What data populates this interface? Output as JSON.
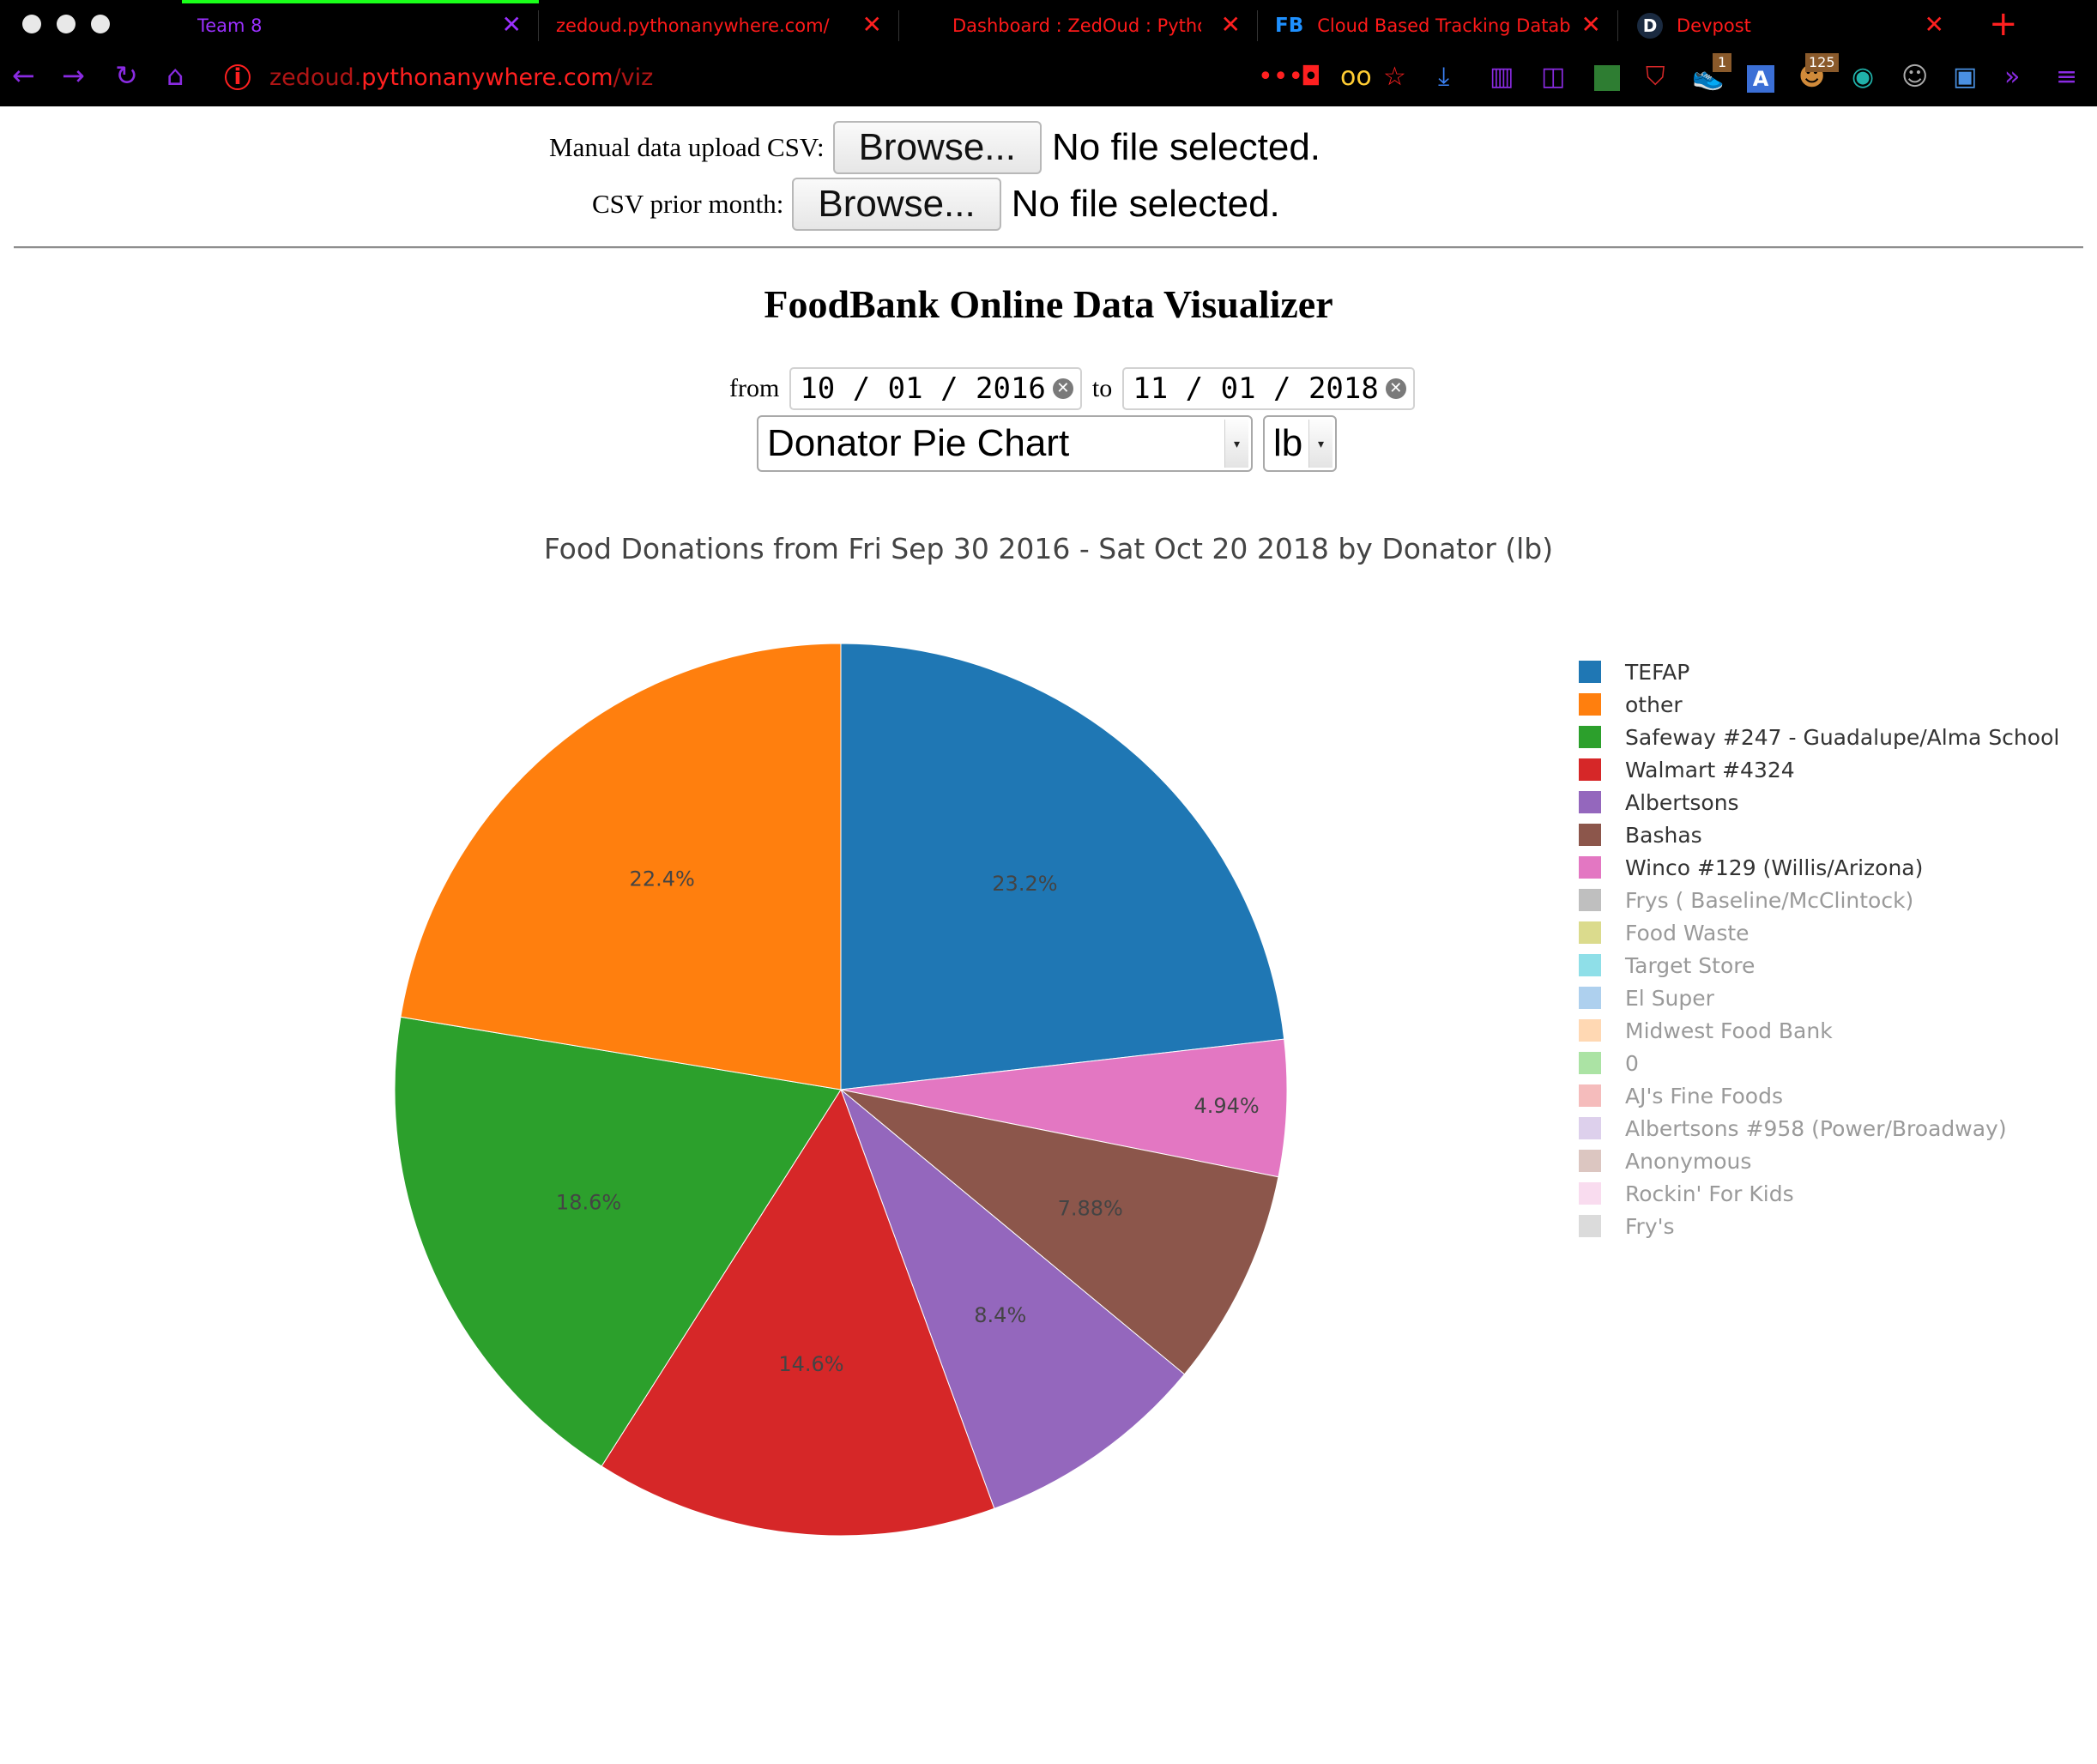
{
  "browser": {
    "tabs": [
      {
        "title": "Team 8",
        "active": true
      },
      {
        "title": "zedoud.pythonanywhere.com/",
        "active": false
      },
      {
        "title": "Dashboard : ZedOud : Pytho",
        "active": false
      },
      {
        "title": "Cloud Based Tracking Datab",
        "active": false,
        "favicon": "FB"
      },
      {
        "title": "Devpost",
        "active": false,
        "favicon": "D"
      }
    ],
    "url": {
      "prefix": "zedoud.",
      "domain": "pythonanywhere.com",
      "path": "/viz"
    },
    "toolbar_badges": {
      "badge1": "1",
      "badge2": "125"
    }
  },
  "upload": {
    "manual_label": "Manual data upload CSV:",
    "prior_label": "CSV prior month:",
    "browse_label": "Browse...",
    "no_file": "No file selected."
  },
  "page_title": "FoodBank Online Data Visualizer",
  "filters": {
    "from_label": "from",
    "to_label": "to",
    "from_date": "10 / 01 / 2016",
    "to_date": "11 / 01 / 2018",
    "chart_type": "Donator Pie Chart",
    "unit": "lb"
  },
  "chart_data": {
    "type": "pie",
    "title": "Food Donations from Fri Sep 30 2016 - Sat Oct 20 2018 by Donator (lb)",
    "slices": [
      {
        "label": "TEFAP",
        "percent": 23.2,
        "text": "23.2%",
        "color": "#1f77b4"
      },
      {
        "label": "Winco #129 (Willis/Arizona)",
        "percent": 4.94,
        "text": "4.94%",
        "color": "#e377c2"
      },
      {
        "label": "Bashas",
        "percent": 7.88,
        "text": "7.88%",
        "color": "#8c564b"
      },
      {
        "label": "Albertsons",
        "percent": 8.4,
        "text": "8.4%",
        "color": "#9467bd"
      },
      {
        "label": "Walmart #4324",
        "percent": 14.6,
        "text": "14.6%",
        "color": "#d62728"
      },
      {
        "label": "Safeway #247 - Guadalupe/Alma School",
        "percent": 18.6,
        "text": "18.6%",
        "color": "#2ca02c"
      },
      {
        "label": "other",
        "percent": 22.4,
        "text": "22.4%",
        "color": "#ff7f0e"
      }
    ],
    "legend": {
      "placement": "right",
      "items": [
        {
          "label": "TEFAP",
          "color": "#1f77b4",
          "hidden": false
        },
        {
          "label": "other",
          "color": "#ff7f0e",
          "hidden": false
        },
        {
          "label": "Safeway #247 - Guadalupe/Alma School",
          "color": "#2ca02c",
          "hidden": false
        },
        {
          "label": "Walmart #4324",
          "color": "#d62728",
          "hidden": false
        },
        {
          "label": "Albertsons",
          "color": "#9467bd",
          "hidden": false
        },
        {
          "label": "Bashas",
          "color": "#8c564b",
          "hidden": false
        },
        {
          "label": "Winco #129 (Willis/Arizona)",
          "color": "#e377c2",
          "hidden": false
        },
        {
          "label": "Frys ( Baseline/McClintock)",
          "color": "#bfbfbf",
          "hidden": true
        },
        {
          "label": "Food Waste",
          "color": "#dbdb8d",
          "hidden": true
        },
        {
          "label": "Target Store",
          "color": "#8fdfe8",
          "hidden": true
        },
        {
          "label": "El Super",
          "color": "#aed0ee",
          "hidden": true
        },
        {
          "label": "Midwest Food Bank",
          "color": "#ffd8b3",
          "hidden": true
        },
        {
          "label": "0",
          "color": "#abe3a4",
          "hidden": true
        },
        {
          "label": "AJ's Fine Foods",
          "color": "#f5bcbc",
          "hidden": true
        },
        {
          "label": "Albertsons #958 (Power/Broadway)",
          "color": "#ddd0ec",
          "hidden": true
        },
        {
          "label": "Anonymous",
          "color": "#dcc6c1",
          "hidden": true
        },
        {
          "label": "Rockin' For Kids",
          "color": "#f9dcef",
          "hidden": true
        },
        {
          "label": "Fry's",
          "color": "#dbdbdb",
          "hidden": true
        }
      ]
    }
  }
}
